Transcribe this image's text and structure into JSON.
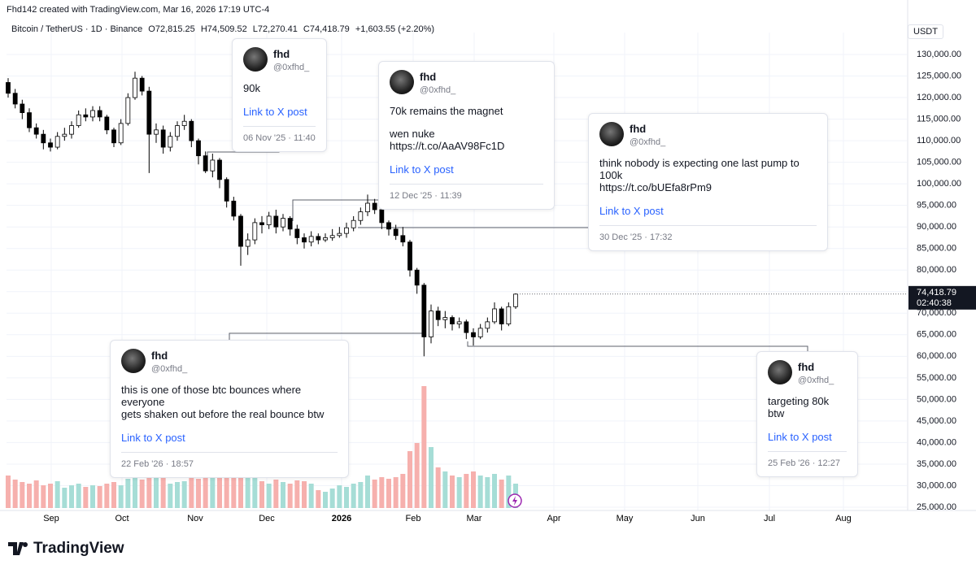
{
  "header": {
    "credit": "Fhd142 created with TradingView.com, Mar 16, 2026 17:19 UTC-4",
    "symbol": "Bitcoin / TetherUS · 1D · Binance",
    "o_label": "O",
    "open": {
      "value": 72815.25,
      "label": "72,815.25"
    },
    "h_label": "H",
    "high": {
      "value": 74509.52,
      "label": "74,509.52"
    },
    "l_label": "L",
    "low": {
      "value": 72270.41,
      "label": "72,270.41"
    },
    "c_label": "C",
    "close": {
      "value": 74418.79,
      "label": "74,418.79"
    },
    "change": "+1,603.55 (+2.20%)",
    "currency": "USDT",
    "logo": "TradingView"
  },
  "chart_data": {
    "type": "candlestick",
    "up_color": "#ffffff",
    "down_color": "#000000",
    "wick_color": "#000000",
    "volume_up_color": "#a6ddd6",
    "volume_down_color": "#f6b0ad",
    "grid": true,
    "ylim": [
      25000,
      130000
    ],
    "yticks": [
      {
        "value": 25000,
        "label": "25,000.00"
      },
      {
        "value": 30000,
        "label": "30,000.00"
      },
      {
        "value": 35000,
        "label": "35,000.00"
      },
      {
        "value": 40000,
        "label": "40,000.00"
      },
      {
        "value": 45000,
        "label": "45,000.00"
      },
      {
        "value": 50000,
        "label": "50,000.00"
      },
      {
        "value": 55000,
        "label": "55,000.00"
      },
      {
        "value": 60000,
        "label": "60,000.00"
      },
      {
        "value": 65000,
        "label": "65,000.00"
      },
      {
        "value": 70000,
        "label": "70,000.00"
      },
      {
        "value": 75000,
        "label": "75,000.00"
      },
      {
        "value": 80000,
        "label": "80,000.00"
      },
      {
        "value": 85000,
        "label": "85,000.00"
      },
      {
        "value": 90000,
        "label": "90,000.00"
      },
      {
        "value": 95000,
        "label": "95,000.00"
      },
      {
        "value": 100000,
        "label": "100,000.00"
      },
      {
        "value": 105000,
        "label": "105,000.00"
      },
      {
        "value": 110000,
        "label": "110,000.00"
      },
      {
        "value": 115000,
        "label": "115,000.00"
      },
      {
        "value": 120000,
        "label": "120,000.00"
      },
      {
        "value": 125000,
        "label": "125,000.00"
      },
      {
        "value": 130000,
        "label": "130,000.00"
      }
    ],
    "xticks": [
      "Sep",
      "Oct",
      "Nov",
      "Dec",
      "2026",
      "Feb",
      "Mar",
      "Apr",
      "May",
      "Jun",
      "Jul",
      "Aug"
    ],
    "last_price": {
      "value": 74418.79,
      "label": "74,418.79"
    },
    "countdown": "02:40:38",
    "candles": {
      "open": [
        123500,
        121000,
        118500,
        116500,
        113000,
        111500,
        109500,
        108500,
        111000,
        111500,
        113500,
        116000,
        115500,
        117000,
        115500,
        112500,
        109500,
        114000,
        120000,
        124500,
        121500,
        111500,
        112500,
        108500,
        111000,
        113500,
        114500,
        110000,
        106500,
        103000,
        105500,
        101000,
        96000,
        92500,
        85500,
        87000,
        91000,
        90500,
        92500,
        90000,
        92000,
        89500,
        87500,
        86500,
        87800,
        87000,
        87500,
        88000,
        88500,
        89800,
        91500,
        93500,
        95500,
        94000,
        91000,
        89500,
        88000,
        86500,
        80000,
        76500,
        64500,
        70500,
        68500,
        69000,
        67500,
        68000,
        65500,
        64500,
        66500,
        68000,
        71000,
        67500,
        71500
      ],
      "high": [
        124500,
        122000,
        119500,
        117500,
        114000,
        112500,
        110500,
        112000,
        113000,
        114500,
        117000,
        117500,
        118000,
        118000,
        116000,
        113000,
        115000,
        121000,
        126000,
        125000,
        122500,
        114000,
        113500,
        112000,
        114500,
        116000,
        115000,
        110500,
        107500,
        107000,
        106000,
        101500,
        97000,
        93000,
        88500,
        92000,
        92500,
        93500,
        94000,
        93000,
        92500,
        90500,
        88500,
        89000,
        88500,
        88500,
        89500,
        90000,
        91000,
        92500,
        94500,
        97500,
        96500,
        94500,
        91500,
        90500,
        90000,
        87000,
        80500,
        77000,
        72000,
        71500,
        70500,
        69500,
        69000,
        68500,
        66500,
        67500,
        69000,
        72500,
        71500,
        72500,
        74600
      ],
      "low": [
        120000,
        117500,
        115000,
        112000,
        110500,
        108000,
        107500,
        108000,
        110000,
        110500,
        113000,
        114500,
        114500,
        114500,
        111500,
        108500,
        109000,
        113500,
        119500,
        120500,
        102500,
        109500,
        107000,
        107500,
        110000,
        112500,
        108500,
        104500,
        102500,
        101500,
        99000,
        94500,
        91500,
        81000,
        83500,
        86000,
        88500,
        89500,
        88500,
        89000,
        88000,
        86000,
        85000,
        85500,
        86000,
        86500,
        86800,
        87500,
        87500,
        89000,
        90500,
        92500,
        93000,
        89500,
        88000,
        87000,
        85500,
        78500,
        74500,
        60000,
        63000,
        67000,
        66500,
        66000,
        66500,
        64000,
        62500,
        64000,
        65500,
        67500,
        66000,
        67000,
        71000
      ],
      "close": [
        121000,
        118500,
        116500,
        113000,
        111500,
        109500,
        108500,
        111000,
        111500,
        113500,
        116000,
        115500,
        117000,
        115500,
        112500,
        109500,
        114000,
        120000,
        124500,
        121500,
        111500,
        112500,
        108500,
        111000,
        113500,
        114500,
        110000,
        106500,
        103000,
        105500,
        101000,
        96000,
        92500,
        85500,
        87000,
        91000,
        90500,
        92500,
        90000,
        92000,
        89500,
        87500,
        86500,
        87800,
        87000,
        87500,
        88000,
        88500,
        89800,
        91500,
        93500,
        95500,
        94000,
        91000,
        89500,
        88000,
        86500,
        80000,
        76500,
        64500,
        70500,
        68500,
        69000,
        67500,
        68000,
        65500,
        64500,
        66500,
        68000,
        71000,
        67500,
        71500,
        74418.79
      ],
      "volume": [
        40,
        35,
        32,
        30,
        34,
        28,
        30,
        33,
        25,
        28,
        30,
        26,
        28,
        27,
        30,
        32,
        28,
        36,
        40,
        35,
        70,
        45,
        38,
        30,
        32,
        33,
        38,
        36,
        40,
        38,
        42,
        45,
        48,
        55,
        42,
        38,
        33,
        30,
        35,
        32,
        30,
        34,
        33,
        30,
        22,
        20,
        24,
        28,
        26,
        30,
        32,
        40,
        35,
        38,
        36,
        38,
        42,
        70,
        80,
        150,
        75,
        50,
        45,
        40,
        38,
        42,
        45,
        40,
        38,
        42,
        35,
        40,
        30
      ]
    }
  },
  "posts": [
    {
      "name": "fhd",
      "handle": "@0xfhd_",
      "lines": [
        "90k"
      ],
      "link": "Link to X post",
      "date": "06 Nov '25 · 11:40"
    },
    {
      "name": "fhd",
      "handle": "@0xfhd_",
      "lines": [
        "70k remains the magnet",
        "wen nuke https://t.co/AaAV98Fc1D"
      ],
      "link": "Link to X post",
      "date": "12 Dec '25 · 11:39"
    },
    {
      "name": "fhd",
      "handle": "@0xfhd_",
      "lines": [
        "think nobody is expecting one last pump to 100k",
        "https://t.co/bUEfa8rPm9"
      ],
      "link": "Link to X post",
      "date": "30 Dec '25 · 17:32"
    },
    {
      "name": "fhd",
      "handle": "@0xfhd_",
      "lines": [
        "this is one of those btc bounces where everyone",
        "gets shaken out before the real bounce btw"
      ],
      "link": "Link to X post",
      "date": "22 Feb '26 · 18:57"
    },
    {
      "name": "fhd",
      "handle": "@0xfhd_",
      "lines": [
        "targeting 80k btw"
      ],
      "link": "Link to X post",
      "date": "25 Feb '26 · 12:27"
    }
  ]
}
